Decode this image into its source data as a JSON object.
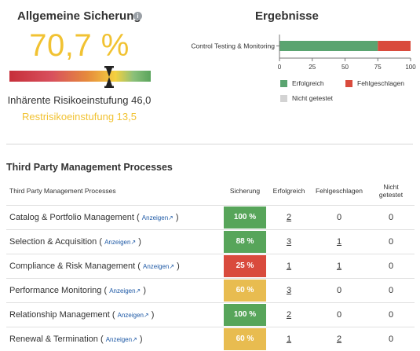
{
  "assurance": {
    "title": "Allgemeine Sicherung",
    "info_icon": "i",
    "score": "70,7 %",
    "score_value": 70.7,
    "inherent": "Inhärente Risikoeinstufung 46,0",
    "residual": "Restrisikoeinstufung 13,5",
    "colors": {
      "score": "#f1c232"
    }
  },
  "results": {
    "title": "Ergebnisse",
    "legend": [
      {
        "label": "Erfolgreich",
        "color": "#5aa470"
      },
      {
        "label": "Fehlgeschlagen",
        "color": "#d94b3d"
      },
      {
        "label": "Nicht getestet",
        "color": "#d3d3d3"
      }
    ]
  },
  "chart_data": {
    "type": "bar",
    "orientation": "horizontal",
    "stacked": true,
    "categories": [
      "Control Testing & Monitoring"
    ],
    "series": [
      {
        "name": "Erfolgreich",
        "values": [
          75
        ]
      },
      {
        "name": "Fehlgeschlagen",
        "values": [
          25
        ]
      },
      {
        "name": "Nicht getestet",
        "values": [
          0
        ]
      }
    ],
    "xlim": [
      0,
      100
    ],
    "xticks": [
      "0",
      "25",
      "50",
      "75",
      "100"
    ],
    "legend_position": "bottom"
  },
  "table": {
    "title": "Third Party Management Processes",
    "headers": {
      "name": "Third Party Management Processes",
      "assurance": "Sicherung",
      "passed": "Erfolgreich",
      "failed": "Fehlgeschlagen",
      "untested_line1": "Nicht",
      "untested_line2": "getestet"
    },
    "show_label": "Anzeigen",
    "rows": [
      {
        "name": "Catalog & Portfolio Management",
        "pct": "100 %",
        "color": "#57a55a",
        "passed": "2",
        "failed": "0",
        "untested": "0"
      },
      {
        "name": "Selection & Acquisition",
        "pct": "88 %",
        "color": "#57a55a",
        "passed": "3",
        "failed": "1",
        "untested": "0"
      },
      {
        "name": "Compliance & Risk Management",
        "pct": "25 %",
        "color": "#d94b3d",
        "passed": "1",
        "failed": "1",
        "untested": "0"
      },
      {
        "name": "Performance Monitoring",
        "pct": "60 %",
        "color": "#e8bc50",
        "passed": "3",
        "failed": "0",
        "untested": "0"
      },
      {
        "name": "Relationship Management",
        "pct": "100 %",
        "color": "#57a55a",
        "passed": "2",
        "failed": "0",
        "untested": "0"
      },
      {
        "name": "Renewal & Termination",
        "pct": "60 %",
        "color": "#e8bc50",
        "passed": "1",
        "failed": "2",
        "untested": "0"
      }
    ]
  }
}
